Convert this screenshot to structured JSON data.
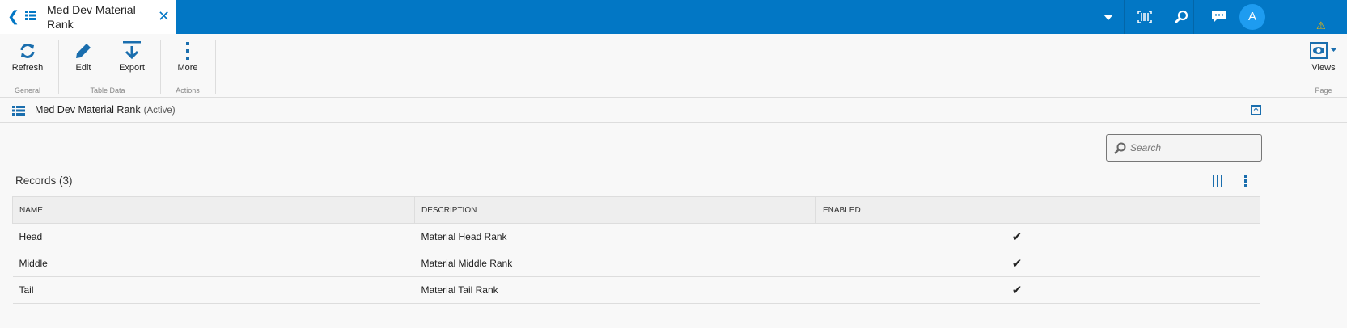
{
  "tab": {
    "title": "Med Dev Material Rank"
  },
  "user": {
    "initial": "A"
  },
  "toolbar": {
    "refresh": "Refresh",
    "edit": "Edit",
    "export": "Export",
    "more": "More",
    "views": "Views",
    "groups": {
      "general": "General",
      "table_data": "Table Data",
      "actions": "Actions",
      "page": "Page"
    }
  },
  "breadcrumb": {
    "title": "Med Dev Material Rank",
    "status": "(Active)"
  },
  "search": {
    "placeholder": "Search"
  },
  "records": {
    "label": "Records (3)"
  },
  "table": {
    "headers": [
      "NAME",
      "DESCRIPTION",
      "ENABLED"
    ],
    "rows": [
      {
        "name": "Head",
        "description": "Material Head Rank",
        "enabled": true
      },
      {
        "name": "Middle",
        "description": "Material Middle Rank",
        "enabled": true
      },
      {
        "name": "Tail",
        "description": "Material Tail Rank",
        "enabled": true
      }
    ]
  },
  "colors": {
    "brand": "#0277c5",
    "avatar": "#1e9cf0"
  }
}
